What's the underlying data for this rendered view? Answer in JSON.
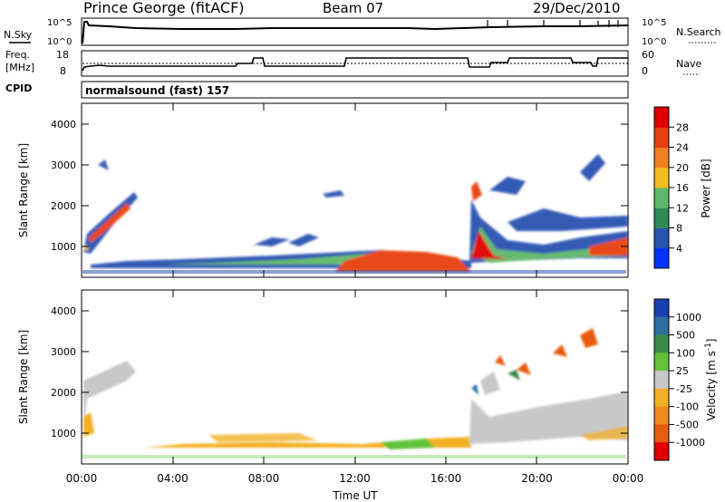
{
  "header": {
    "station": "Prince George (fitACF)",
    "beam": "Beam 07",
    "date": "29/Dec/2010"
  },
  "panels": {
    "sky": {
      "left_label": "N.Sky",
      "right_label": "N.Search",
      "ticks_left": [
        "10^5",
        "10^0"
      ],
      "ticks_right": [
        "10^5",
        "10^0"
      ]
    },
    "freq": {
      "label_line1": "Freq.",
      "label_line2": "[MHz]",
      "ticks_left": [
        "18",
        "8"
      ],
      "right_label": "Nave",
      "ticks_right": [
        "60",
        "0"
      ]
    },
    "cpid": {
      "label": "CPID",
      "program": "normalsound (fast) 157"
    }
  },
  "chart_data": [
    {
      "type": "heatmap",
      "title": "",
      "quantity": "Power",
      "ylabel": "Slant Range [km]",
      "xlabel": "",
      "yticks": [
        "1000",
        "2000",
        "3000",
        "4000"
      ],
      "ylim": [
        200,
        4600
      ],
      "xlim": [
        "00:00",
        "24:00"
      ],
      "colorbar": {
        "label": "Power [dB]",
        "ticks": [
          "4",
          "8",
          "12",
          "16",
          "20",
          "24",
          "28"
        ],
        "colors": [
          "#0033ff",
          "#2a53b0",
          "#2f8a55",
          "#5eb86a",
          "#f0c020",
          "#f08020",
          "#e84010",
          "#e00000"
        ]
      }
    },
    {
      "type": "heatmap",
      "title": "",
      "quantity": "Velocity",
      "ylabel": "Slant Range [km]",
      "xlabel": "Time UT",
      "yticks": [
        "1000",
        "2000",
        "3000",
        "4000"
      ],
      "ylim": [
        200,
        4600
      ],
      "xticks": [
        "00:00",
        "04:00",
        "08:00",
        "12:00",
        "16:00",
        "20:00",
        "00:00"
      ],
      "colorbar": {
        "label": "Velocity [m s-1]",
        "ticks": [
          "1000",
          "500",
          "100",
          "25",
          "-25",
          "-100",
          "-500",
          "-1000"
        ],
        "colors": [
          "#1a3fb0",
          "#2e6e9e",
          "#3a8a4a",
          "#62c23a",
          "#c8c8c8",
          "#f2b024",
          "#f08a1a",
          "#e85a10",
          "#e00000"
        ]
      }
    }
  ]
}
